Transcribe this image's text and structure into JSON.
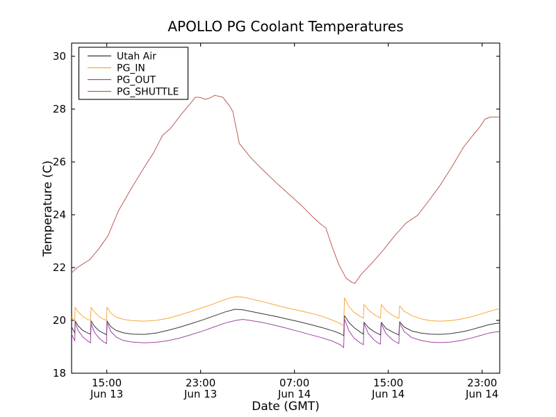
{
  "chart_data": {
    "type": "line",
    "title": "APOLLO PG Coolant Temperatures",
    "xlabel": "Date (GMT)",
    "ylabel": "Temperature (C)",
    "ylim": [
      18,
      30.5
    ],
    "yticks": [
      18,
      20,
      22,
      24,
      26,
      28,
      30
    ],
    "xlim_hours_from_jun13_1200": [
      0,
      36.5
    ],
    "xticks": [
      {
        "t": 3,
        "time": "15:00",
        "date": "Jun 13"
      },
      {
        "t": 11,
        "time": "23:00",
        "date": "Jun 13"
      },
      {
        "t": 19,
        "time": "07:00",
        "date": "Jun 14"
      },
      {
        "t": 27,
        "time": "15:00",
        "date": "Jun 14"
      },
      {
        "t": 35,
        "time": "23:00",
        "date": "Jun 14"
      }
    ],
    "grid": false,
    "legend": {
      "position": "upper-left",
      "border_color": "#000000",
      "background": "#ffffff"
    },
    "axis_color": "#000000",
    "background_color": "#ffffff",
    "series": [
      {
        "name": "Utah Air",
        "color": "#363636",
        "points": [
          [
            0,
            19.75
          ],
          [
            0.27,
            19.52
          ],
          [
            0.3,
            19.98
          ],
          [
            0.55,
            19.8
          ],
          [
            0.95,
            19.62
          ],
          [
            1.35,
            19.53
          ],
          [
            1.62,
            19.48
          ],
          [
            1.66,
            19.98
          ],
          [
            1.95,
            19.78
          ],
          [
            2.35,
            19.6
          ],
          [
            2.7,
            19.52
          ],
          [
            2.98,
            19.46
          ],
          [
            3.02,
            19.98
          ],
          [
            3.35,
            19.76
          ],
          [
            3.8,
            19.62
          ],
          [
            4.4,
            19.53
          ],
          [
            5.2,
            19.48
          ],
          [
            6.2,
            19.47
          ],
          [
            7.2,
            19.52
          ],
          [
            8.2,
            19.62
          ],
          [
            9.2,
            19.74
          ],
          [
            10.2,
            19.88
          ],
          [
            11.2,
            20.02
          ],
          [
            12.2,
            20.18
          ],
          [
            13.1,
            20.32
          ],
          [
            13.9,
            20.42
          ],
          [
            14.6,
            20.4
          ],
          [
            15.4,
            20.33
          ],
          [
            16.4,
            20.24
          ],
          [
            17.4,
            20.15
          ],
          [
            18.4,
            20.05
          ],
          [
            19.4,
            19.95
          ],
          [
            20.4,
            19.84
          ],
          [
            21.4,
            19.72
          ],
          [
            22.3,
            19.6
          ],
          [
            22.9,
            19.5
          ],
          [
            23.2,
            19.42
          ],
          [
            23.27,
            20.18
          ],
          [
            23.65,
            19.92
          ],
          [
            24.1,
            19.72
          ],
          [
            24.6,
            19.56
          ],
          [
            24.88,
            19.48
          ],
          [
            24.93,
            19.93
          ],
          [
            25.3,
            19.73
          ],
          [
            25.8,
            19.57
          ],
          [
            26.2,
            19.48
          ],
          [
            26.33,
            19.45
          ],
          [
            26.4,
            19.93
          ],
          [
            26.8,
            19.7
          ],
          [
            27.4,
            19.55
          ],
          [
            27.9,
            19.45
          ],
          [
            27.97,
            19.95
          ],
          [
            28.35,
            19.75
          ],
          [
            29,
            19.6
          ],
          [
            29.8,
            19.52
          ],
          [
            30.6,
            19.48
          ],
          [
            31.4,
            19.47
          ],
          [
            32.3,
            19.5
          ],
          [
            33.2,
            19.56
          ],
          [
            34,
            19.64
          ],
          [
            34.8,
            19.74
          ],
          [
            35.6,
            19.84
          ],
          [
            36.1,
            19.88
          ],
          [
            36.5,
            19.9
          ]
        ]
      },
      {
        "name": "PG_IN",
        "color": "#f6a83a",
        "points": [
          [
            0,
            20.12
          ],
          [
            0.27,
            19.97
          ],
          [
            0.3,
            20.5
          ],
          [
            0.55,
            20.33
          ],
          [
            0.95,
            20.15
          ],
          [
            1.35,
            20.04
          ],
          [
            1.62,
            20.0
          ],
          [
            1.66,
            20.5
          ],
          [
            1.95,
            20.32
          ],
          [
            2.35,
            20.14
          ],
          [
            2.7,
            20.05
          ],
          [
            2.98,
            20.0
          ],
          [
            3.02,
            20.5
          ],
          [
            3.35,
            20.28
          ],
          [
            3.8,
            20.13
          ],
          [
            4.4,
            20.04
          ],
          [
            5.2,
            19.99
          ],
          [
            6.2,
            19.97
          ],
          [
            7.2,
            20.0
          ],
          [
            8.2,
            20.08
          ],
          [
            9.2,
            20.2
          ],
          [
            10.2,
            20.34
          ],
          [
            11.2,
            20.49
          ],
          [
            12.2,
            20.64
          ],
          [
            13,
            20.78
          ],
          [
            13.6,
            20.86
          ],
          [
            14.1,
            20.9
          ],
          [
            14.7,
            20.87
          ],
          [
            15.4,
            20.8
          ],
          [
            16.4,
            20.7
          ],
          [
            17.4,
            20.58
          ],
          [
            18.4,
            20.47
          ],
          [
            19.4,
            20.37
          ],
          [
            20.4,
            20.27
          ],
          [
            21.4,
            20.15
          ],
          [
            22.3,
            20.0
          ],
          [
            22.9,
            19.88
          ],
          [
            23.2,
            19.8
          ],
          [
            23.27,
            20.85
          ],
          [
            23.65,
            20.52
          ],
          [
            24.1,
            20.3
          ],
          [
            24.6,
            20.15
          ],
          [
            24.88,
            20.08
          ],
          [
            24.93,
            20.6
          ],
          [
            25.3,
            20.4
          ],
          [
            25.8,
            20.22
          ],
          [
            26.2,
            20.12
          ],
          [
            26.33,
            20.09
          ],
          [
            26.4,
            20.6
          ],
          [
            26.8,
            20.38
          ],
          [
            27.4,
            20.18
          ],
          [
            27.9,
            20.08
          ],
          [
            27.97,
            20.55
          ],
          [
            28.35,
            20.35
          ],
          [
            29,
            20.18
          ],
          [
            29.8,
            20.06
          ],
          [
            30.6,
            19.99
          ],
          [
            31.4,
            19.97
          ],
          [
            32.3,
            19.99
          ],
          [
            33.2,
            20.05
          ],
          [
            34,
            20.13
          ],
          [
            34.8,
            20.23
          ],
          [
            35.6,
            20.34
          ],
          [
            36.1,
            20.4
          ],
          [
            36.5,
            20.44
          ]
        ]
      },
      {
        "name": "PG_OUT",
        "color": "#9d44a4",
        "points": [
          [
            0,
            19.48
          ],
          [
            0.27,
            19.22
          ],
          [
            0.3,
            19.92
          ],
          [
            0.55,
            19.62
          ],
          [
            0.95,
            19.38
          ],
          [
            1.35,
            19.23
          ],
          [
            1.62,
            19.15
          ],
          [
            1.66,
            19.88
          ],
          [
            1.95,
            19.55
          ],
          [
            2.35,
            19.32
          ],
          [
            2.7,
            19.2
          ],
          [
            2.98,
            19.12
          ],
          [
            3.02,
            19.92
          ],
          [
            3.35,
            19.58
          ],
          [
            3.8,
            19.37
          ],
          [
            4.4,
            19.24
          ],
          [
            5.2,
            19.18
          ],
          [
            6.2,
            19.15
          ],
          [
            7.2,
            19.17
          ],
          [
            8.2,
            19.23
          ],
          [
            9.2,
            19.33
          ],
          [
            10.2,
            19.46
          ],
          [
            11.2,
            19.6
          ],
          [
            12.2,
            19.76
          ],
          [
            13.1,
            19.9
          ],
          [
            14,
            20.0
          ],
          [
            14.6,
            20.04
          ],
          [
            15.2,
            20.0
          ],
          [
            16.2,
            19.93
          ],
          [
            17.2,
            19.83
          ],
          [
            18.2,
            19.72
          ],
          [
            19.2,
            19.6
          ],
          [
            20.2,
            19.48
          ],
          [
            21.2,
            19.36
          ],
          [
            22.2,
            19.22
          ],
          [
            22.9,
            19.08
          ],
          [
            23.2,
            18.97
          ],
          [
            23.27,
            20.05
          ],
          [
            23.65,
            19.6
          ],
          [
            24.1,
            19.32
          ],
          [
            24.6,
            19.15
          ],
          [
            24.88,
            19.08
          ],
          [
            24.93,
            19.88
          ],
          [
            25.3,
            19.5
          ],
          [
            25.8,
            19.25
          ],
          [
            26.2,
            19.13
          ],
          [
            26.33,
            19.1
          ],
          [
            26.4,
            19.88
          ],
          [
            26.8,
            19.5
          ],
          [
            27.4,
            19.25
          ],
          [
            27.9,
            19.12
          ],
          [
            27.97,
            19.9
          ],
          [
            28.35,
            19.58
          ],
          [
            29,
            19.35
          ],
          [
            29.8,
            19.24
          ],
          [
            30.6,
            19.18
          ],
          [
            31.4,
            19.16
          ],
          [
            32.3,
            19.18
          ],
          [
            33.2,
            19.24
          ],
          [
            34,
            19.32
          ],
          [
            34.8,
            19.42
          ],
          [
            35.6,
            19.52
          ],
          [
            36.1,
            19.56
          ],
          [
            36.5,
            19.58
          ]
        ]
      },
      {
        "name": "PG_SHUTTLE",
        "color": "#bc5a54",
        "points": [
          [
            0,
            21.8
          ],
          [
            0.5,
            22.0
          ],
          [
            1,
            22.15
          ],
          [
            1.55,
            22.3
          ],
          [
            2.3,
            22.7
          ],
          [
            3.1,
            23.2
          ],
          [
            4,
            24.15
          ],
          [
            5.1,
            25.0
          ],
          [
            6.2,
            25.8
          ],
          [
            7,
            26.35
          ],
          [
            7.75,
            27.0
          ],
          [
            8.45,
            27.28
          ],
          [
            9.35,
            27.8
          ],
          [
            10.1,
            28.2
          ],
          [
            10.55,
            28.45
          ],
          [
            11,
            28.44
          ],
          [
            11.4,
            28.37
          ],
          [
            11.8,
            28.42
          ],
          [
            12.2,
            28.52
          ],
          [
            12.9,
            28.45
          ],
          [
            13.5,
            28.1
          ],
          [
            13.75,
            27.9
          ],
          [
            14.3,
            26.7
          ],
          [
            15.3,
            26.15
          ],
          [
            16.3,
            25.7
          ],
          [
            17.6,
            25.15
          ],
          [
            18.6,
            24.75
          ],
          [
            19.6,
            24.35
          ],
          [
            20.6,
            23.9
          ],
          [
            21.3,
            23.62
          ],
          [
            21.68,
            23.5
          ],
          [
            22.2,
            22.8
          ],
          [
            22.8,
            22.1
          ],
          [
            23.4,
            21.6
          ],
          [
            23.9,
            21.44
          ],
          [
            24.15,
            21.4
          ],
          [
            24.7,
            21.75
          ],
          [
            25.5,
            22.12
          ],
          [
            26.5,
            22.62
          ],
          [
            27.5,
            23.18
          ],
          [
            28.5,
            23.68
          ],
          [
            29.5,
            23.98
          ],
          [
            30.4,
            24.5
          ],
          [
            31.4,
            25.1
          ],
          [
            32.4,
            25.8
          ],
          [
            33.4,
            26.55
          ],
          [
            34.2,
            27.0
          ],
          [
            34.8,
            27.32
          ],
          [
            35.25,
            27.62
          ],
          [
            35.7,
            27.7
          ],
          [
            36.5,
            27.7
          ]
        ]
      }
    ]
  }
}
